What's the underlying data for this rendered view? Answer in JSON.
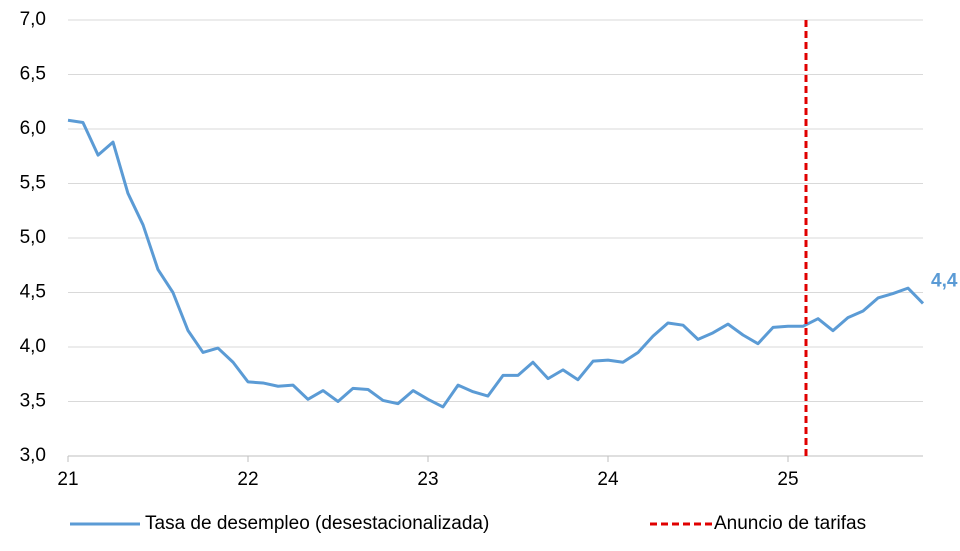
{
  "chart_data": {
    "type": "line",
    "x": [
      21,
      21.083,
      21.167,
      21.25,
      21.333,
      21.417,
      21.5,
      21.583,
      21.667,
      21.75,
      21.833,
      21.917,
      22,
      22.083,
      22.167,
      22.25,
      22.333,
      22.417,
      22.5,
      22.583,
      22.667,
      22.75,
      22.833,
      22.917,
      23,
      23.083,
      23.167,
      23.25,
      23.333,
      23.417,
      23.5,
      23.583,
      23.667,
      23.75,
      23.833,
      23.917,
      24,
      24.083,
      24.167,
      24.25,
      24.333,
      24.417,
      24.5,
      24.583,
      24.667,
      24.75,
      24.833,
      24.917,
      25,
      25.083,
      25.167,
      25.25,
      25.333,
      25.417,
      25.5,
      25.583,
      25.667,
      25.75
    ],
    "series": [
      {
        "name": "Tasa de desempleo (desestacionalizada)",
        "color": "#5b9bd5",
        "values": [
          6.08,
          6.06,
          5.76,
          5.88,
          5.41,
          5.12,
          4.71,
          4.5,
          4.15,
          3.95,
          3.99,
          3.86,
          3.68,
          3.67,
          3.64,
          3.65,
          3.52,
          3.6,
          3.5,
          3.62,
          3.61,
          3.51,
          3.48,
          3.6,
          3.52,
          3.45,
          3.65,
          3.59,
          3.55,
          3.74,
          3.74,
          3.86,
          3.71,
          3.79,
          3.7,
          3.87,
          3.88,
          3.86,
          3.95,
          4.1,
          4.22,
          4.2,
          4.07,
          4.13,
          4.21,
          4.11,
          4.03,
          4.18,
          4.19,
          4.19,
          4.26,
          4.15,
          4.27,
          4.33,
          4.45,
          4.49,
          4.54,
          4.4
        ],
        "value_labels": [
          null,
          null,
          null,
          null,
          null,
          null,
          null,
          null,
          null,
          null,
          null,
          null,
          null,
          null,
          null,
          null,
          null,
          null,
          null,
          null,
          null,
          null,
          null,
          null,
          null,
          null,
          null,
          null,
          null,
          null,
          null,
          null,
          null,
          null,
          null,
          null,
          null,
          null,
          null,
          null,
          null,
          null,
          null,
          null,
          null,
          null,
          null,
          null,
          null,
          null,
          null,
          null,
          null,
          null,
          null,
          null,
          null,
          "4,4"
        ]
      }
    ],
    "vline": {
      "x": 25.1,
      "name": "Anuncio de tarifas",
      "color": "#e00000"
    },
    "xlim": [
      21,
      25.75
    ],
    "xticks": [
      21,
      22,
      23,
      24,
      25
    ],
    "ylim": [
      3,
      7
    ],
    "yticks": [
      {
        "value": 3,
        "label": "3,0"
      },
      {
        "value": 3.5,
        "label": "3,5"
      },
      {
        "value": 4,
        "label": "4,0"
      },
      {
        "value": 4.5,
        "label": "4,5"
      },
      {
        "value": 5,
        "label": "5,0"
      },
      {
        "value": 5.5,
        "label": "5,5"
      },
      {
        "value": 6,
        "label": "6,0"
      },
      {
        "value": 6.5,
        "label": "6,5"
      },
      {
        "value": 7,
        "label": "7,0"
      }
    ],
    "grid": true,
    "legend": "bottom"
  }
}
